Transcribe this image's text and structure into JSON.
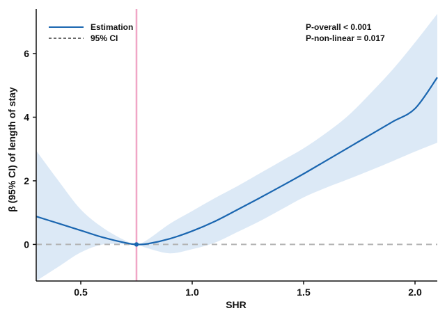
{
  "chart_data": {
    "type": "line",
    "xlabel": "SHR",
    "ylabel": "β (95% CI) of length of stay",
    "xlim": [
      0.3,
      2.1
    ],
    "ylim": [
      -1.15,
      7.4
    ],
    "x_ticks": [
      0.5,
      1.0,
      1.5,
      2.0
    ],
    "x_tick_labels": [
      "0.5",
      "1.0",
      "1.5",
      "2.0"
    ],
    "y_ticks": [
      0,
      2,
      4,
      6
    ],
    "y_tick_labels": [
      "0",
      "2",
      "4",
      "6"
    ],
    "grid": false,
    "legend": {
      "position": "top-left",
      "entries": [
        {
          "label": "Estimation",
          "style": "solid",
          "color": "#1a66b0"
        },
        {
          "label": "95% CI",
          "style": "dashed",
          "color": "#111111"
        }
      ]
    },
    "annotations": [
      "P-overall < 0.001",
      "P-non-linear = 0.017"
    ],
    "reference_x": 0.75,
    "reference_y": 0,
    "reference_point": {
      "x": 0.75,
      "y": 0
    },
    "series": [
      {
        "name": "Estimation",
        "x": [
          0.3,
          0.4,
          0.5,
          0.6,
          0.7,
          0.75,
          0.8,
          0.9,
          1.0,
          1.1,
          1.2,
          1.3,
          1.4,
          1.5,
          1.6,
          1.7,
          1.8,
          1.9,
          2.0,
          2.1
        ],
        "y": [
          0.88,
          0.66,
          0.44,
          0.22,
          0.05,
          0.0,
          0.02,
          0.18,
          0.42,
          0.72,
          1.08,
          1.45,
          1.83,
          2.22,
          2.63,
          3.04,
          3.45,
          3.86,
          4.27,
          5.25
        ]
      }
    ],
    "ci": {
      "x": [
        0.3,
        0.4,
        0.5,
        0.6,
        0.7,
        0.75,
        0.8,
        0.9,
        1.0,
        1.1,
        1.2,
        1.3,
        1.4,
        1.5,
        1.6,
        1.7,
        1.8,
        1.9,
        2.0,
        2.1
      ],
      "lower": [
        -1.15,
        -0.7,
        -0.25,
        0.0,
        0.0,
        0.0,
        -0.12,
        -0.28,
        -0.15,
        0.05,
        0.38,
        0.72,
        1.1,
        1.48,
        1.78,
        2.05,
        2.33,
        2.62,
        2.92,
        3.2
      ],
      "upper": [
        2.95,
        2.0,
        1.1,
        0.52,
        0.12,
        0.0,
        0.15,
        0.65,
        1.05,
        1.45,
        1.82,
        2.22,
        2.62,
        3.02,
        3.5,
        4.05,
        4.75,
        5.5,
        6.35,
        7.25
      ]
    },
    "colors": {
      "line": "#1a66b0",
      "ci_fill": "#dce9f6",
      "reference_vertical": "#f0a6c6",
      "reference_horizontal": "#b3b3b3",
      "point": "#1a66b0"
    }
  }
}
